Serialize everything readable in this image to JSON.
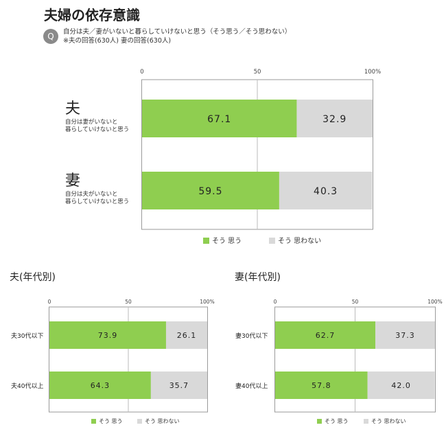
{
  "page": {
    "title": "夫婦の依存意識",
    "q_badge": "Q",
    "q_line1": "自分は夫／妻がいないと暮らしていけないと思う（そう思う／そう思わない）",
    "q_line2": "※夫の回答(630人) 妻の回答(630人)"
  },
  "colors": {
    "agree": "#8fce50",
    "disagree": "#d9d9d9",
    "grid": "#bbbbbb"
  },
  "chart_data": [
    {
      "type": "bar",
      "orientation": "horizontal",
      "stacked": true,
      "title": "",
      "xlim": [
        0,
        100
      ],
      "ticks": [
        "0",
        "50",
        "100%"
      ],
      "categories": [
        {
          "main": "夫",
          "sub1": "自分は妻がいないと",
          "sub2": "暮らしていけないと思う"
        },
        {
          "main": "妻",
          "sub1": "自分は夫がいないと",
          "sub2": "暮らしていけないと思う"
        }
      ],
      "series": [
        {
          "name": "そう 思う",
          "values": [
            67.1,
            59.5
          ],
          "labels": [
            "67.1",
            "59.5"
          ]
        },
        {
          "name": "そう 思わない",
          "values": [
            32.9,
            40.3
          ],
          "labels": [
            "32.9",
            "40.3"
          ]
        }
      ],
      "legend": "bottom"
    },
    {
      "type": "bar",
      "orientation": "horizontal",
      "stacked": true,
      "title": "夫(年代別)",
      "xlim": [
        0,
        100
      ],
      "ticks": [
        "0",
        "50",
        "100%"
      ],
      "categories": [
        "夫30代以下",
        "夫40代以上"
      ],
      "series": [
        {
          "name": "そう 思う",
          "values": [
            73.9,
            64.3
          ],
          "labels": [
            "73.9",
            "64.3"
          ]
        },
        {
          "name": "そう 思わない",
          "values": [
            26.1,
            35.7
          ],
          "labels": [
            "26.1",
            "35.7"
          ]
        }
      ],
      "legend": "bottom"
    },
    {
      "type": "bar",
      "orientation": "horizontal",
      "stacked": true,
      "title": "妻(年代別)",
      "xlim": [
        0,
        100
      ],
      "ticks": [
        "0",
        "50",
        "100%"
      ],
      "categories": [
        "妻30代以下",
        "妻40代以上"
      ],
      "series": [
        {
          "name": "そう 思う",
          "values": [
            62.7,
            57.8
          ],
          "labels": [
            "62.7",
            "57.8"
          ]
        },
        {
          "name": "そう 思わない",
          "values": [
            37.3,
            42.0
          ],
          "labels": [
            "37.3",
            "42.0"
          ]
        }
      ],
      "legend": "bottom"
    }
  ]
}
